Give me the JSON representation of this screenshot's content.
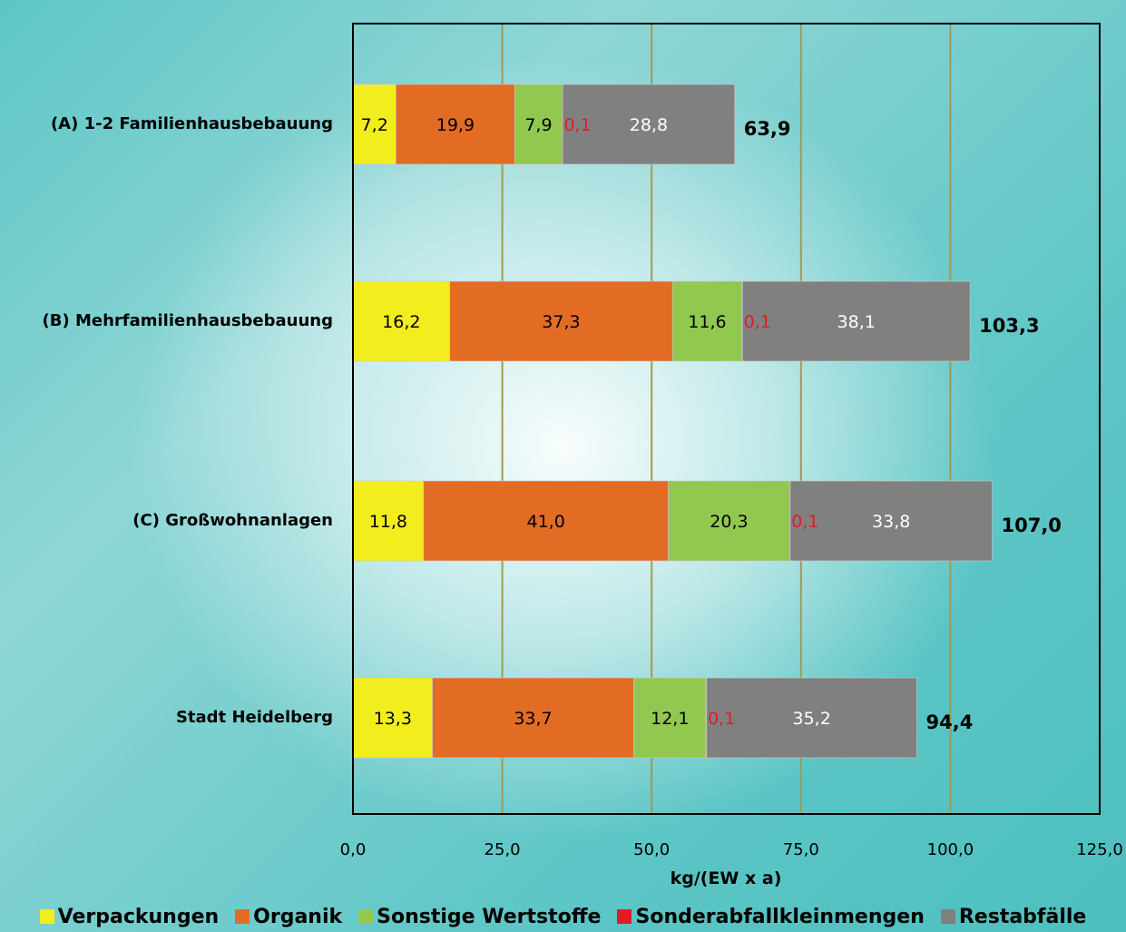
{
  "chart_data": {
    "type": "bar",
    "orientation": "horizontal",
    "stacked": true,
    "categories": [
      "(A) 1-2 Familienhausbebauung",
      "(B) Mehrfamilienhausbebauung",
      "(C) Großwohnanlagen",
      "Stadt Heidelberg"
    ],
    "series": [
      {
        "name": "Verpackungen",
        "color": "#f2ed1c",
        "values": [
          7.2,
          16.2,
          11.8,
          13.3
        ],
        "labels": [
          "7,2",
          "16,2",
          "11,8",
          "13,3"
        ],
        "label_color": "#000000"
      },
      {
        "name": "Organik",
        "color": "#e36c25",
        "values": [
          19.9,
          37.3,
          41.0,
          33.7
        ],
        "labels": [
          "19,9",
          "37,3",
          "41,0",
          "33,7"
        ],
        "label_color": "#000000"
      },
      {
        "name": "Sonstige Wertstoffe",
        "color": "#92c850",
        "values": [
          7.9,
          11.6,
          20.3,
          12.1
        ],
        "labels": [
          "7,9",
          "11,6",
          "20,3",
          "12,1"
        ],
        "label_color": "#000000"
      },
      {
        "name": "Sonderabfallkleinmengen",
        "color": "#e31c23",
        "values": [
          0.1,
          0.1,
          0.1,
          0.1
        ],
        "labels": [
          "0,1",
          "0,1",
          "0,1",
          "0,1"
        ],
        "label_color": "#e31c23"
      },
      {
        "name": "Restabfälle",
        "color": "#808080",
        "values": [
          28.8,
          38.1,
          33.8,
          35.2
        ],
        "labels": [
          "28,8",
          "38,1",
          "33,8",
          "35,2"
        ],
        "label_color": "#ffffff"
      }
    ],
    "totals": [
      63.9,
      103.3,
      107.0,
      94.4
    ],
    "total_labels": [
      "63,9",
      "103,3",
      "107,0",
      "94,4"
    ],
    "xlabel": "kg/(EW x a)",
    "xlim": [
      0,
      125
    ],
    "xticks": [
      0,
      25,
      50,
      75,
      100,
      125
    ],
    "xtick_labels": [
      "0,0",
      "25,0",
      "50,0",
      "75,0",
      "100,0",
      "125,0"
    ],
    "grid": true,
    "gridline_color": "#a09a55",
    "legend_position": "bottom"
  }
}
